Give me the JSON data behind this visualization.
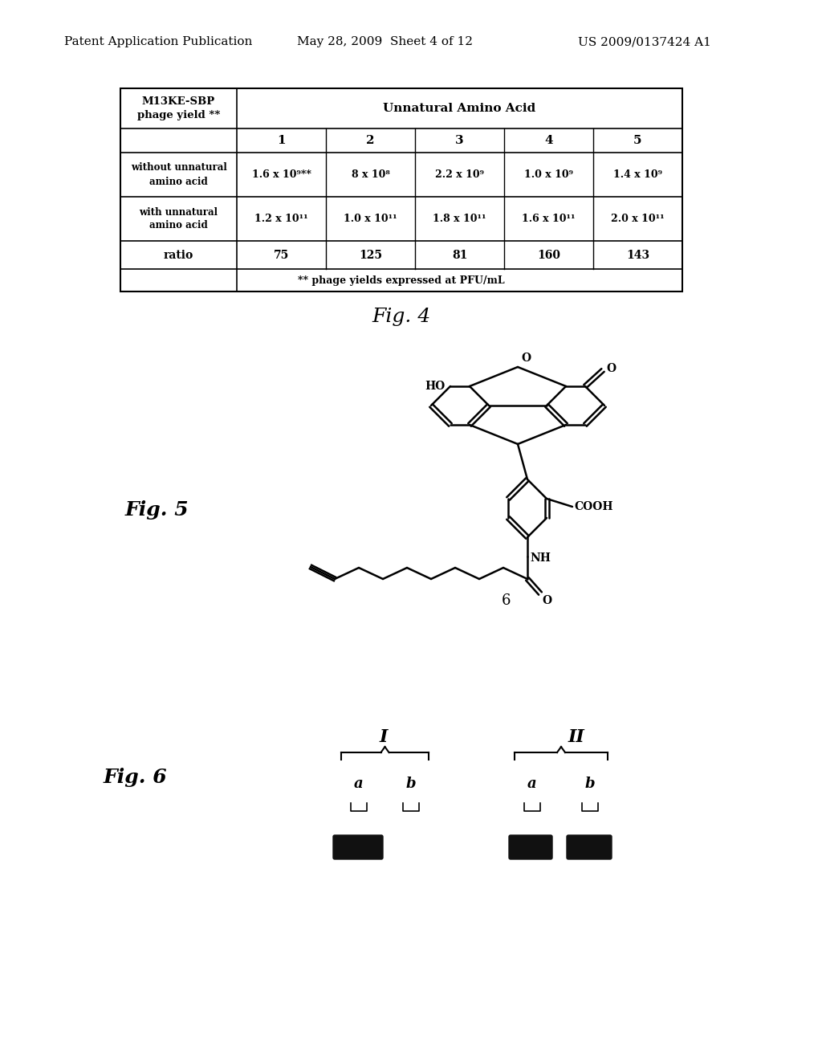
{
  "header_left": "Patent Application Publication",
  "header_mid": "May 28, 2009  Sheet 4 of 12",
  "header_right": "US 2009/0137424 A1",
  "fig4_label": "Fig. 4",
  "fig5_label": "Fig. 5",
  "fig6_label": "Fig. 6",
  "compound_label": "6",
  "table": {
    "col0_header": [
      "M13KE-SBP",
      "phage yield **"
    ],
    "unnatural_header": "Unnatural Amino Acid",
    "col_nums": [
      "1",
      "2",
      "3",
      "4",
      "5"
    ],
    "row1_label": [
      "without unnatural",
      "amino acid"
    ],
    "row1_vals": [
      "1.6 x 10⁹**",
      "8 x 10⁸",
      "2.2 x 10⁹",
      "1.0 x 10⁹",
      "1.4 x 10⁹"
    ],
    "row2_label": [
      "with unnatural",
      "amino acid"
    ],
    "row2_vals": [
      "1.2 x 10¹¹",
      "1.0 x 10¹¹",
      "1.8 x 10¹¹",
      "1.6 x 10¹¹",
      "2.0 x 10¹¹"
    ],
    "row3_label": "ratio",
    "row3_vals": [
      "75",
      "125",
      "81",
      "160",
      "143"
    ],
    "footer": "** phage yields expressed at PFU/mL"
  },
  "background_color": "#ffffff",
  "text_color": "#000000",
  "font_family": "serif"
}
